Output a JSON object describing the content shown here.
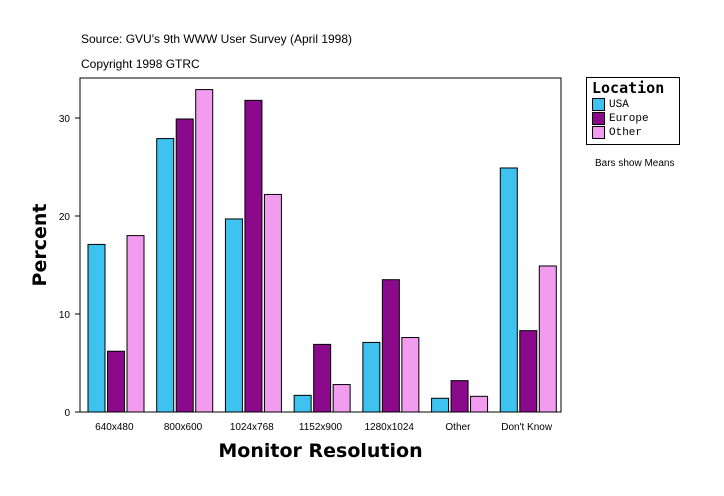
{
  "header": {
    "source": "Source: GVU's 9th WWW User Survey (April 1998)",
    "copyright": "Copyright 1998 GTRC"
  },
  "note": "Bars show Means",
  "chart_data": {
    "type": "bar",
    "xlabel": "Monitor Resolution",
    "ylabel": "Percent",
    "categories": [
      "640x480",
      "800x600",
      "1024x768",
      "1152x900",
      "1280x1024",
      "Other",
      "Don't Know"
    ],
    "ylim": [
      0,
      34
    ],
    "yticks": [
      0,
      10,
      20,
      30
    ],
    "grid": false,
    "legend": {
      "title": "Location",
      "placement": "right"
    },
    "series": [
      {
        "name": "USA",
        "color": "#3ec3f0",
        "values": [
          17.1,
          27.9,
          19.7,
          1.7,
          7.1,
          1.4,
          24.9
        ]
      },
      {
        "name": "Europe",
        "color": "#8b0a8b",
        "values": [
          6.2,
          29.9,
          31.8,
          6.9,
          13.5,
          3.2,
          8.3
        ]
      },
      {
        "name": "Other",
        "color": "#f29cf0",
        "values": [
          18.0,
          32.9,
          22.2,
          2.8,
          7.6,
          1.6,
          14.9
        ]
      }
    ]
  }
}
